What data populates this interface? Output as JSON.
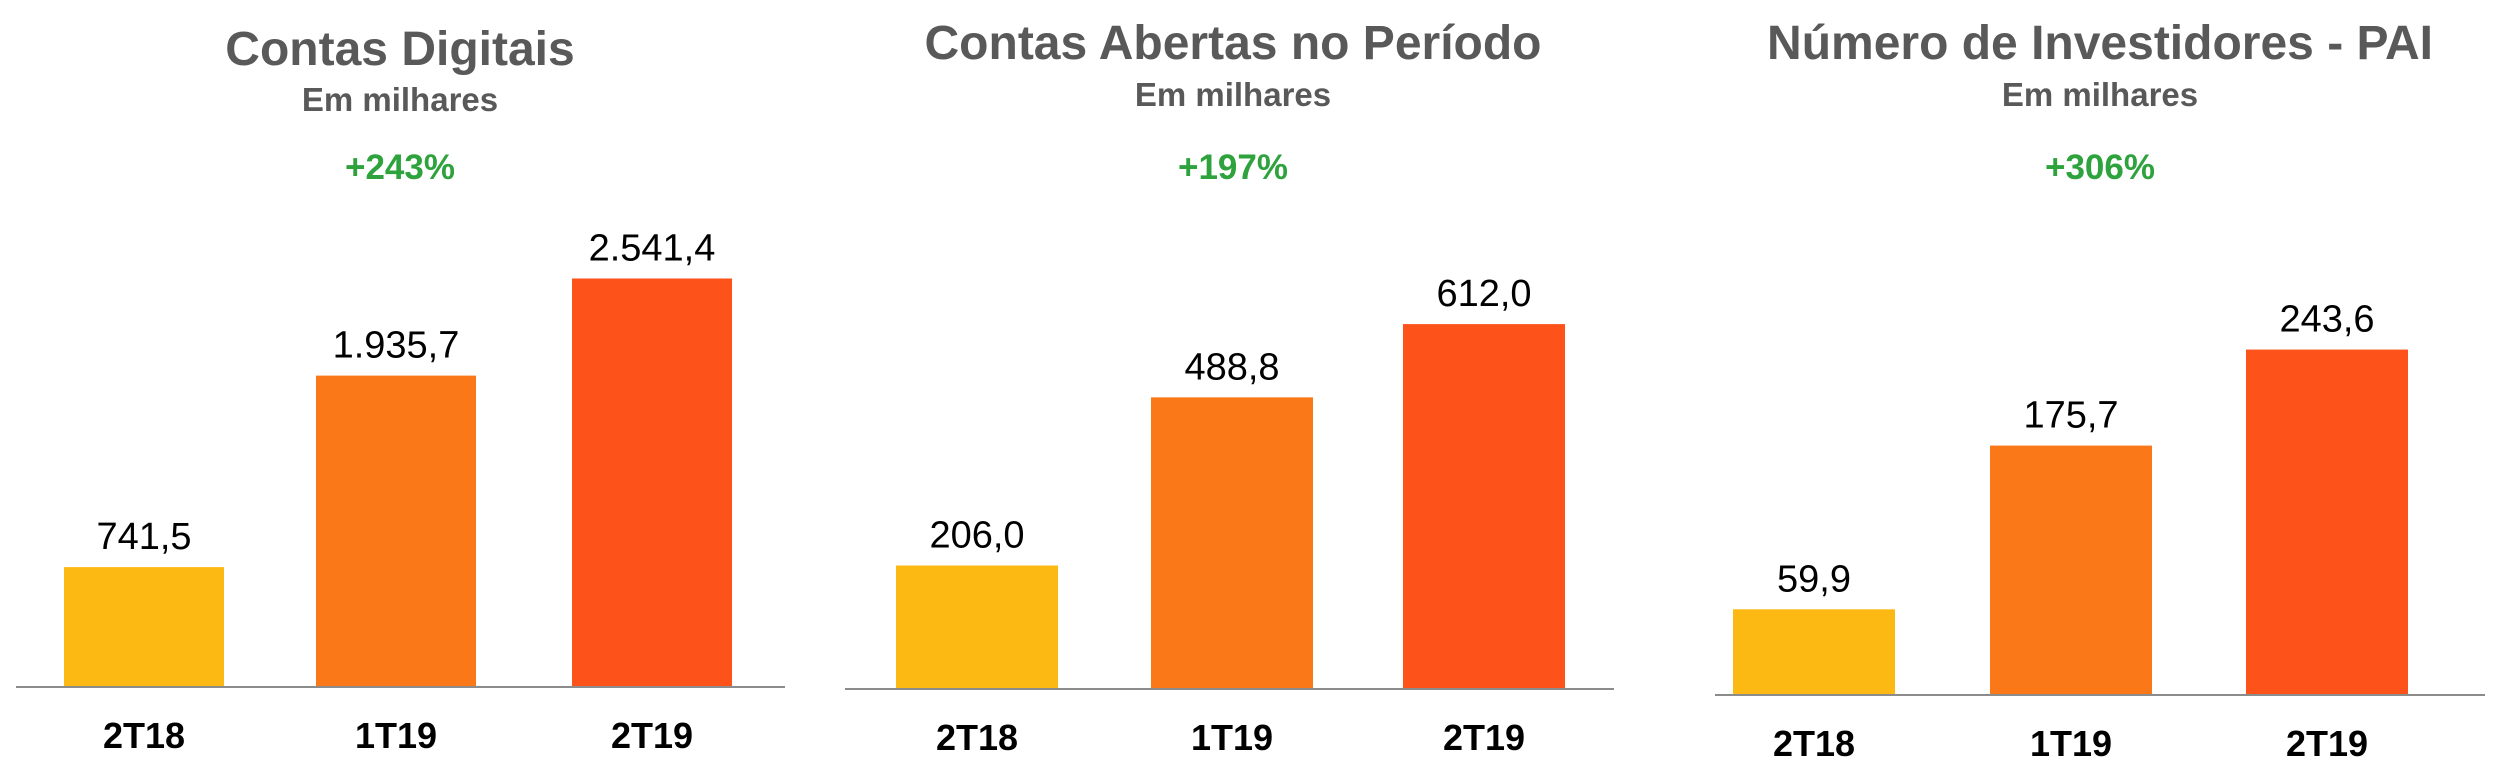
{
  "chart_data": [
    {
      "type": "bar",
      "title": "Contas Digitais",
      "subtitle": "Em milhares",
      "annotation": "+243%",
      "categories": [
        "2T18",
        "1T19",
        "2T19"
      ],
      "values": [
        741.5,
        1935.7,
        2541.4
      ],
      "value_labels": [
        "741,5",
        "1.935,7",
        "2.541,4"
      ],
      "colors": [
        "#FDB913",
        "#FB7818",
        "#FD521A"
      ],
      "ylim": [
        0,
        3430
      ],
      "grid": false,
      "legend": "none"
    },
    {
      "type": "bar",
      "title": "Contas Abertas no Período",
      "subtitle": "Em milhares",
      "annotation": "+197%",
      "categories": [
        "2T18",
        "1T19",
        "2T19"
      ],
      "values": [
        206.0,
        488.8,
        612.0
      ],
      "value_labels": [
        "206,0",
        "488,8",
        "612,0"
      ],
      "colors": [
        "#FDB913",
        "#FB7818",
        "#FD521A"
      ],
      "ylim": [
        0,
        925
      ],
      "grid": false,
      "legend": "none"
    },
    {
      "type": "bar",
      "title": "Número de Investidores - PAI",
      "subtitle": "Em milhares",
      "annotation": "+306%",
      "categories": [
        "2T18",
        "1T19",
        "2T19"
      ],
      "values": [
        59.9,
        175.7,
        243.6
      ],
      "value_labels": [
        "59,9",
        "175,7",
        "243,6"
      ],
      "colors": [
        "#FDB913",
        "#FB7818",
        "#FD521A"
      ],
      "ylim": [
        0,
        389
      ],
      "grid": false,
      "legend": "none"
    }
  ],
  "colors": {
    "title": "#595959",
    "growth": "#2EA23C",
    "axis": "#8C8C8C",
    "labels": "#000000"
  }
}
